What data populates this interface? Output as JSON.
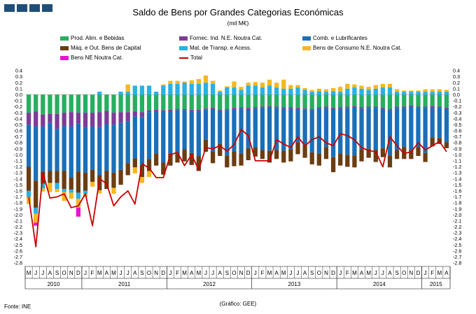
{
  "logo": {
    "squares": [
      "#1f4e79",
      "#1f4e79",
      "#1f4e79",
      "#1f4e79"
    ]
  },
  "title": "Saldo de Bens por Grandes Categorias Económicas",
  "subtitle": "(mil M€)",
  "source": "Fonte: INE",
  "credit": "(Gráfico: GEE)",
  "chart_data": {
    "type": "bar",
    "stacked": true,
    "title": "Saldo de Bens por Grandes Categorias Económicas",
    "ylabel": "mil M€",
    "ylim": [
      -2.8,
      0.4
    ],
    "ytick_step": 0.1,
    "grid": false,
    "legend_position": "top",
    "month_labels": [
      "M",
      "J",
      "J",
      "A",
      "S",
      "O",
      "N",
      "D",
      "J",
      "F",
      "M",
      "A",
      "M",
      "J",
      "J",
      "A",
      "S",
      "O",
      "N",
      "D",
      "J",
      "F",
      "M",
      "A",
      "M",
      "J",
      "J",
      "A",
      "S",
      "O",
      "N",
      "D",
      "J",
      "F",
      "M",
      "A",
      "M",
      "J",
      "J",
      "A",
      "S",
      "O",
      "N",
      "D",
      "J",
      "F",
      "M",
      "A",
      "M",
      "J",
      "J",
      "A",
      "S",
      "O",
      "N",
      "D",
      "J",
      "F",
      "M",
      "A"
    ],
    "years": [
      {
        "label": "2010",
        "months": 8
      },
      {
        "label": "2011",
        "months": 12
      },
      {
        "label": "2012",
        "months": 12
      },
      {
        "label": "2013",
        "months": 12
      },
      {
        "label": "2014",
        "months": 12
      },
      {
        "label": "2015",
        "months": 4
      }
    ],
    "series": [
      {
        "name": "Prod. Alim. e Bebidas",
        "color": "#27ae60",
        "values": [
          -0.3,
          -0.28,
          -0.33,
          -0.32,
          -0.32,
          -0.3,
          -0.29,
          -0.3,
          -0.3,
          -0.3,
          -0.29,
          -0.27,
          -0.3,
          -0.29,
          -0.29,
          -0.28,
          -0.29,
          -0.26,
          -0.25,
          -0.26,
          -0.25,
          -0.24,
          -0.24,
          -0.25,
          -0.25,
          -0.23,
          -0.22,
          -0.25,
          -0.24,
          -0.22,
          -0.21,
          -0.22,
          -0.21,
          -0.2,
          -0.19,
          -0.2,
          -0.21,
          -0.21,
          -0.22,
          -0.23,
          -0.24,
          -0.21,
          -0.2,
          -0.22,
          -0.21,
          -0.2,
          -0.19,
          -0.21,
          -0.2,
          -0.2,
          -0.22,
          -0.24,
          -0.2,
          -0.2,
          -0.18,
          -0.2,
          -0.2,
          -0.19,
          -0.2,
          -0.22
        ]
      },
      {
        "name": "Fornec. Ind. N.E. Noutra Cat.",
        "color": "#7d3c98",
        "values": [
          -0.2,
          -0.25,
          -0.2,
          -0.15,
          -0.25,
          -0.22,
          -0.24,
          -0.18,
          -0.25,
          -0.23,
          -0.25,
          -0.22,
          -0.2,
          -0.18,
          -0.15,
          -0.08,
          -0.08,
          -0.03,
          -0.03,
          -0.02,
          -0.03,
          -0.02,
          -0.02,
          -0.02,
          -0.02,
          -0.02,
          -0.02,
          -0.02,
          -0.02,
          -0.02,
          -0.02,
          -0.02,
          -0.02,
          -0.02,
          -0.02,
          -0.02,
          -0.02,
          -0.02,
          -0.02,
          -0.02,
          -0.02,
          -0.02,
          -0.02,
          -0.02,
          -0.02,
          -0.02,
          -0.02,
          -0.02,
          -0.02,
          -0.02,
          -0.02,
          -0.02,
          -0.02,
          -0.02,
          -0.02,
          -0.02,
          -0.02,
          -0.02,
          -0.02,
          -0.02
        ]
      },
      {
        "name": "Comb. e Lubrificantes",
        "color": "#1a6fb8",
        "values": [
          -0.7,
          -0.9,
          -0.75,
          -0.8,
          -0.7,
          -0.75,
          -0.85,
          -0.8,
          -0.75,
          -0.72,
          -0.8,
          -0.78,
          -0.8,
          -0.78,
          -0.7,
          -0.7,
          -0.8,
          -0.78,
          -0.7,
          -0.85,
          -0.7,
          -0.72,
          -0.65,
          -0.7,
          -0.75,
          -0.5,
          -0.7,
          -0.55,
          -0.75,
          -0.7,
          -0.75,
          -0.65,
          -0.65,
          -0.7,
          -0.72,
          -0.7,
          -0.7,
          -0.68,
          -0.55,
          -0.6,
          -0.7,
          -0.75,
          -0.65,
          -0.8,
          -0.75,
          -0.78,
          -0.8,
          -0.68,
          -0.68,
          -0.7,
          -0.65,
          -0.75,
          -0.7,
          -0.65,
          -0.72,
          -0.65,
          -0.75,
          -0.5,
          -0.5,
          -0.55
        ]
      },
      {
        "name": "Máq. e Out. Bens de Capital",
        "color": "#6b3d12",
        "values": [
          -0.4,
          -0.45,
          -0.2,
          -0.2,
          -0.2,
          -0.3,
          -0.2,
          -0.35,
          -0.3,
          -0.2,
          -0.25,
          -0.3,
          -0.25,
          -0.25,
          -0.2,
          -0.15,
          -0.2,
          -0.2,
          -0.2,
          -0.2,
          -0.2,
          -0.15,
          -0.2,
          -0.2,
          -0.25,
          -0.2,
          -0.2,
          -0.2,
          -0.2,
          -0.25,
          -0.2,
          -0.2,
          -0.15,
          -0.15,
          -0.2,
          -0.15,
          -0.2,
          -0.2,
          -0.2,
          -0.2,
          -0.2,
          -0.2,
          -0.2,
          -0.25,
          -0.2,
          -0.2,
          -0.2,
          -0.2,
          -0.15,
          -0.2,
          -0.15,
          -0.2,
          -0.15,
          -0.2,
          -0.15,
          -0.15,
          -0.15,
          -0.15,
          -0.1,
          -0.1
        ]
      },
      {
        "name": "Mat. de Transp. e Acess.",
        "color": "#2ab0e4",
        "values": [
          -0.1,
          -0.1,
          -0.08,
          0.0,
          -0.1,
          -0.05,
          -0.05,
          -0.1,
          -0.05,
          0.0,
          0.05,
          0.0,
          0.0,
          0.05,
          0.05,
          0.15,
          0.15,
          0.15,
          0.05,
          0.15,
          0.18,
          0.18,
          0.2,
          0.18,
          0.18,
          0.2,
          0.18,
          0.05,
          0.12,
          0.12,
          0.08,
          0.15,
          0.15,
          0.12,
          0.15,
          0.12,
          0.1,
          0.1,
          0.12,
          0.08,
          0.05,
          0.06,
          0.05,
          0.06,
          0.05,
          0.1,
          0.12,
          0.1,
          0.08,
          0.1,
          0.12,
          0.12,
          0.05,
          0.05,
          0.05,
          0.05,
          0.05,
          0.05,
          0.05,
          0.05
        ]
      },
      {
        "name": "Bens de Consumo N.E. Noutra Cat.",
        "color": "#f5b820",
        "values": [
          -0.12,
          -0.15,
          -0.05,
          -0.15,
          -0.05,
          -0.15,
          -0.1,
          -0.15,
          -0.05,
          -0.08,
          -0.05,
          0.0,
          -0.1,
          0.0,
          0.12,
          -0.1,
          -0.1,
          -0.1,
          0.0,
          0.02,
          0.05,
          0.05,
          0.02,
          0.06,
          0.08,
          0.12,
          0.05,
          0.02,
          0.02,
          0.1,
          0.05,
          0.05,
          0.06,
          0.08,
          0.1,
          0.08,
          0.15,
          0.06,
          0.04,
          0.03,
          0.03,
          0.04,
          0.04,
          0.05,
          0.08,
          0.08,
          0.05,
          0.05,
          0.05,
          0.06,
          0.06,
          0.06,
          0.04,
          0.02,
          0.02,
          0.02,
          0.04,
          0.04,
          0.04,
          0.03
        ]
      },
      {
        "name": "Bens NE Noutra Cat.",
        "color": "#e615d5",
        "values": [
          0.0,
          -0.05,
          0.0,
          0.0,
          0.0,
          0.0,
          0.0,
          -0.15,
          0.0,
          0.0,
          0.0,
          0.0,
          0.0,
          0.0,
          0.0,
          0.0,
          0.0,
          0.0,
          0.0,
          0.0,
          0.0,
          0.0,
          0.0,
          0.0,
          0.0,
          0.0,
          0.0,
          0.0,
          0.0,
          0.0,
          0.0,
          0.0,
          0.0,
          0.0,
          0.0,
          0.0,
          0.0,
          0.0,
          0.0,
          0.0,
          0.0,
          0.0,
          0.0,
          0.0,
          0.0,
          0.0,
          0.0,
          0.0,
          0.0,
          0.0,
          0.0,
          0.0,
          0.0,
          0.0,
          0.0,
          0.0,
          0.0,
          0.0,
          0.0,
          0.0
        ]
      }
    ],
    "total": {
      "name": "Total",
      "color": "#cc0000",
      "values": [
        -1.7,
        -2.53,
        -1.3,
        -1.72,
        -1.7,
        -1.65,
        -1.88,
        -1.85,
        -1.65,
        -2.18,
        -1.4,
        -1.48,
        -1.85,
        -1.7,
        -1.6,
        -1.82,
        -1.15,
        -1.22,
        -1.38,
        -1.38,
        -1.0,
        -0.96,
        -1.18,
        -1.0,
        -1.25,
        -0.88,
        -0.9,
        -0.85,
        -0.94,
        -0.83,
        -0.58,
        -0.68,
        -1.1,
        -1.1,
        -1.1,
        -0.75,
        -0.82,
        -0.88,
        -0.7,
        -0.85,
        -0.75,
        -0.7,
        -0.8,
        -0.85,
        -0.65,
        -0.68,
        -0.75,
        -0.88,
        -0.93,
        -0.95,
        -1.2,
        -0.7,
        -0.85,
        -0.98,
        -0.95,
        -0.8,
        -0.92,
        -0.85,
        -0.78,
        -0.95
      ]
    }
  }
}
